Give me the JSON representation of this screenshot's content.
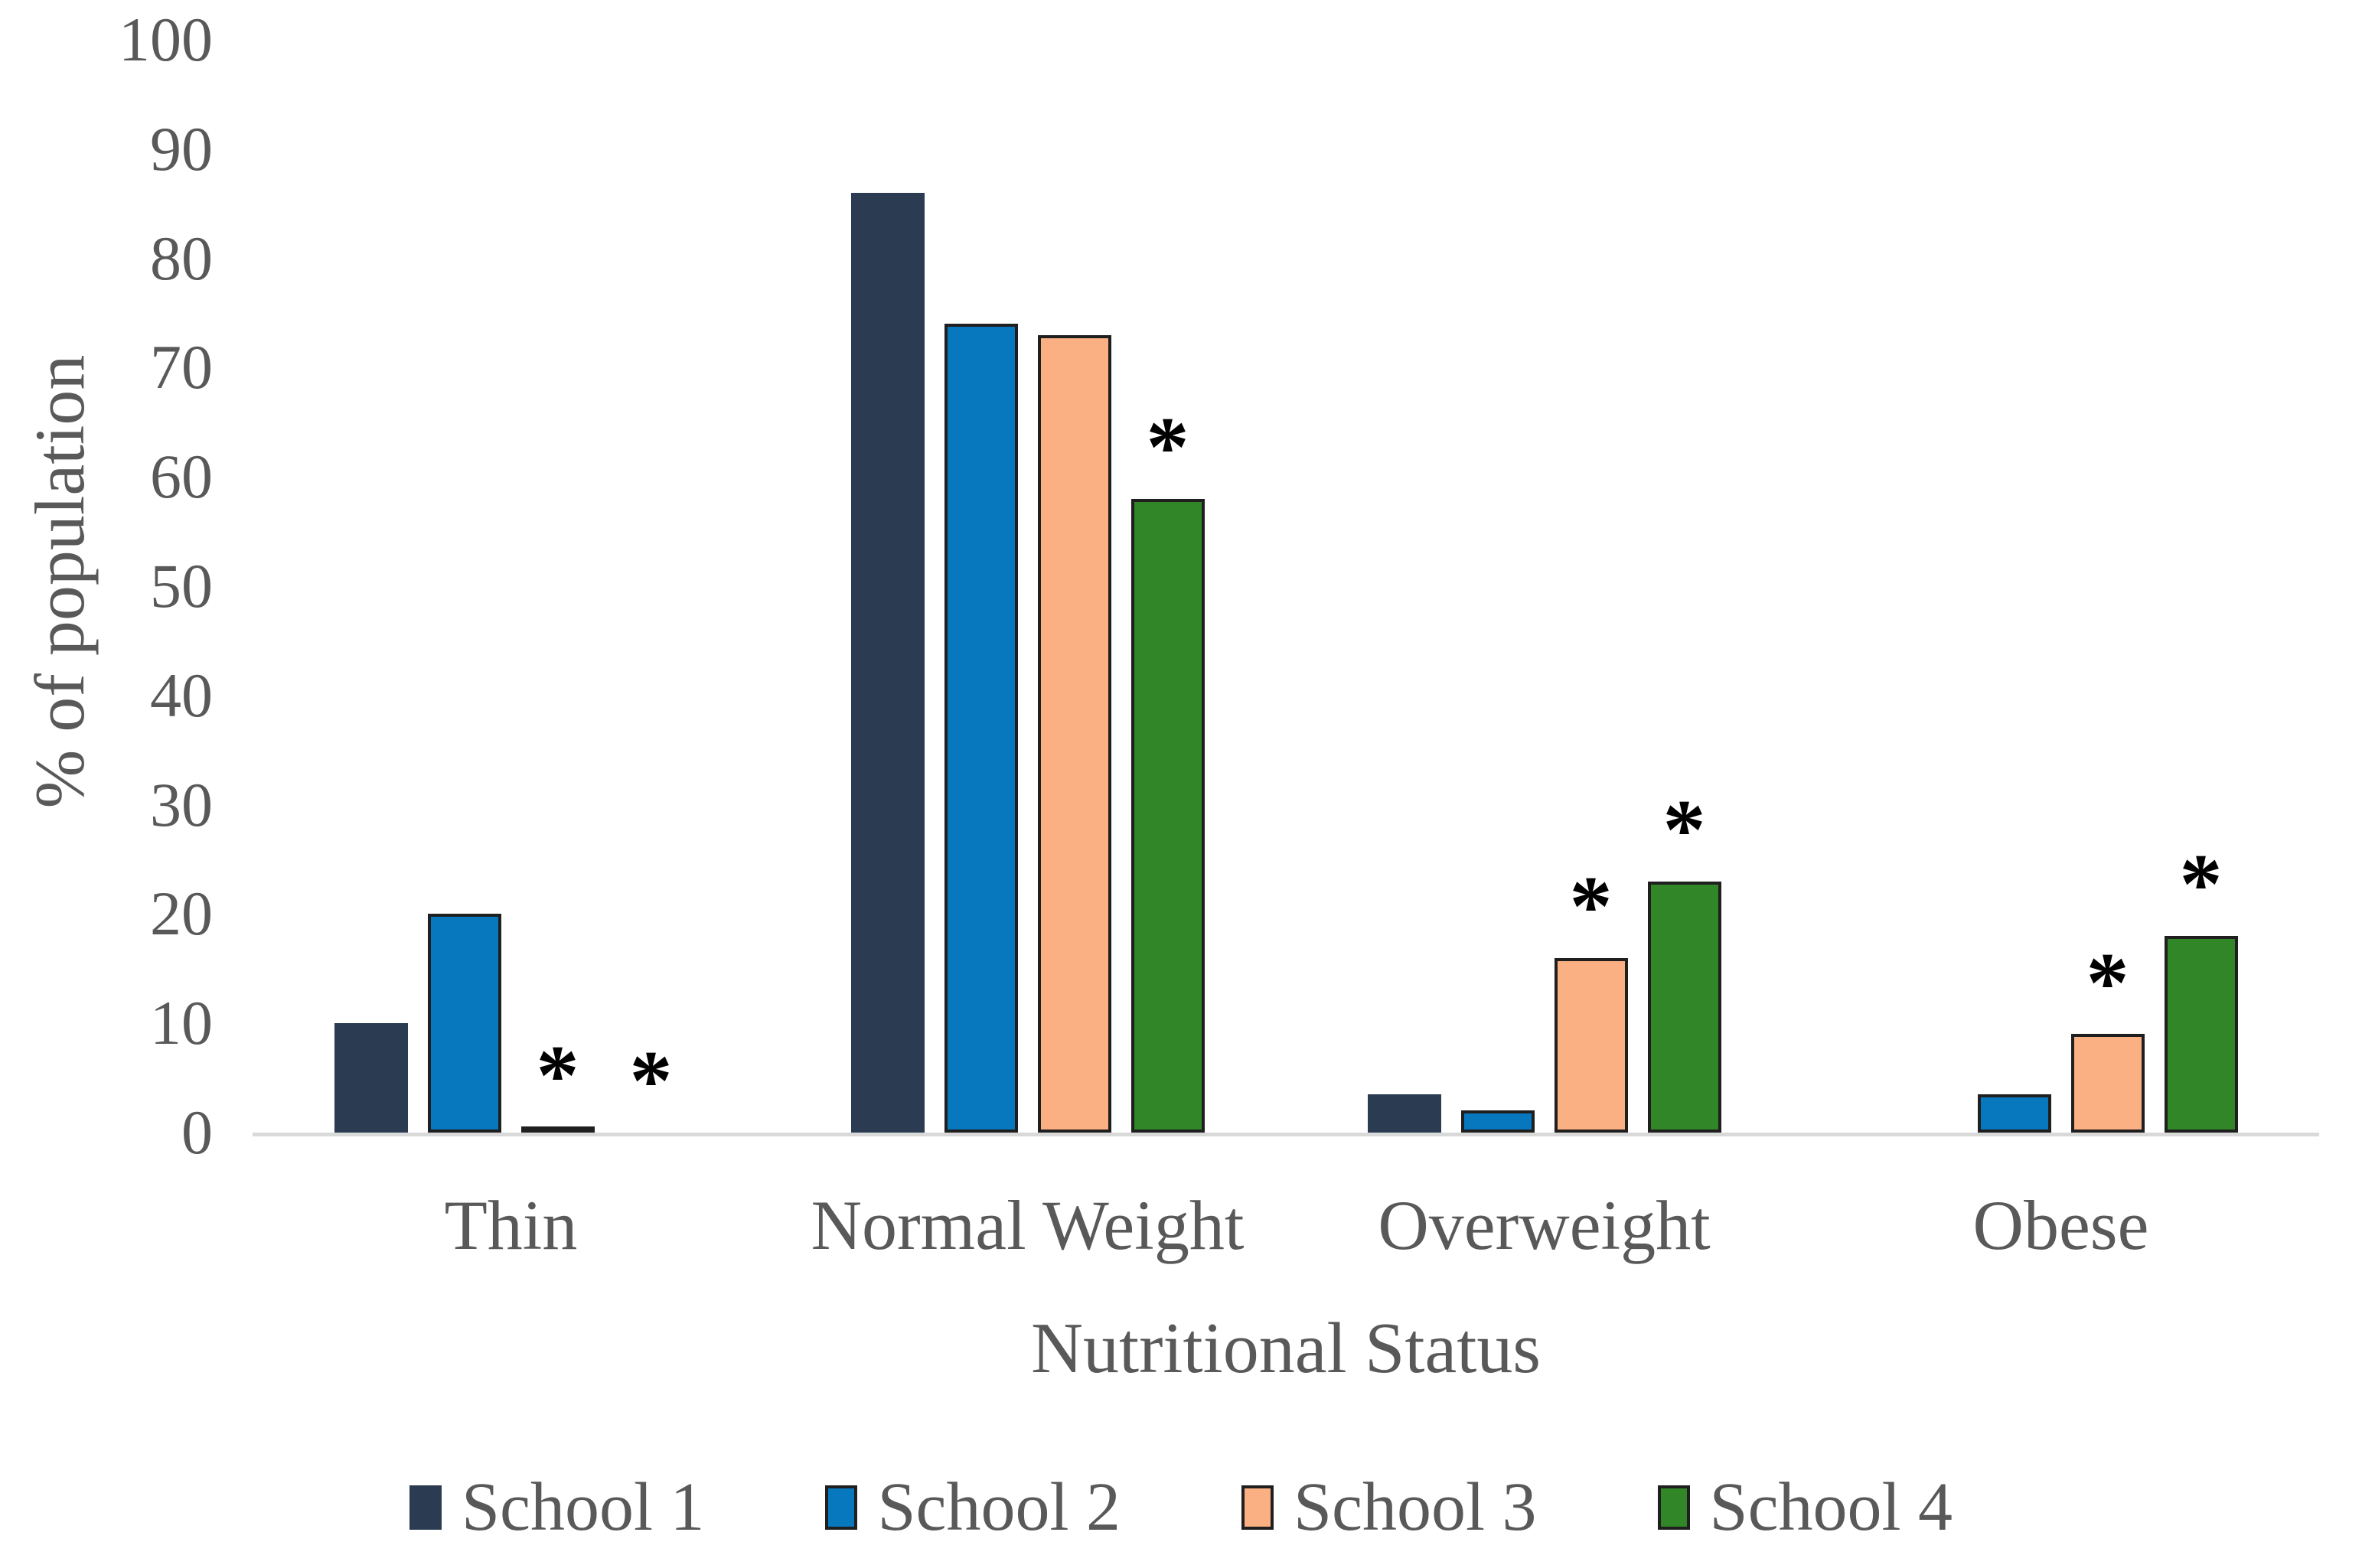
{
  "chart_data": {
    "type": "bar",
    "title": "",
    "xlabel": "Nutritional Status",
    "ylabel": "% of population",
    "categories": [
      "Thin",
      "Normal Weight",
      "Overweight",
      "Obese"
    ],
    "series": [
      {
        "name": "School 1",
        "color": "#2A3B52",
        "outlined": false,
        "values": [
          10,
          86,
          3.5,
          0
        ],
        "asterisks": [
          false,
          false,
          false,
          false
        ]
      },
      {
        "name": "School 2",
        "color": "#0778BE",
        "outlined": true,
        "values": [
          20,
          74,
          2,
          3.5
        ],
        "asterisks": [
          false,
          false,
          false,
          false
        ]
      },
      {
        "name": "School 3",
        "color": "#FBB083",
        "outlined": true,
        "values": [
          0.5,
          73,
          16,
          9
        ],
        "asterisks": [
          true,
          false,
          true,
          true
        ]
      },
      {
        "name": "School 4",
        "color": "#318628",
        "outlined": true,
        "values": [
          0,
          58,
          23,
          18
        ],
        "asterisks": [
          true,
          true,
          true,
          true
        ]
      }
    ],
    "ylim": [
      0,
      100
    ],
    "yticks": [
      0,
      10,
      20,
      30,
      40,
      50,
      60,
      70,
      80,
      90,
      100
    ],
    "grid": false,
    "legend_position": "bottom",
    "annotation_symbol": "*",
    "bar_outline_color": "#1F1F1F",
    "axis_text_color": "#595959",
    "axis_line_color": "#D9D9D9"
  }
}
